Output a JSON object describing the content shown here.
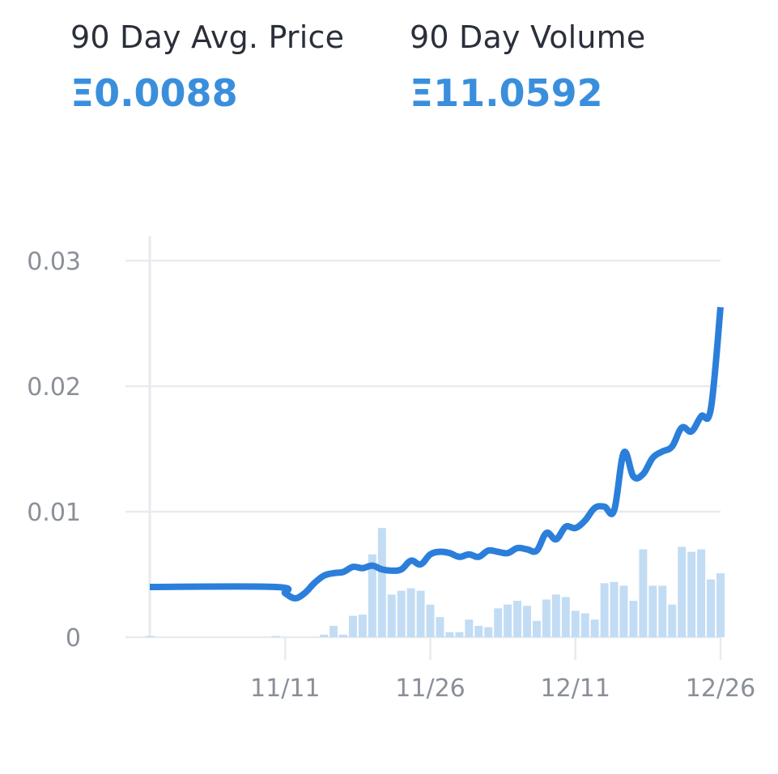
{
  "stats": {
    "avg_price": {
      "label": "90 Day Avg. Price",
      "value": "Ξ0.0088"
    },
    "volume": {
      "label": "90 Day Volume",
      "value": "Ξ11.0592"
    }
  },
  "colors": {
    "accent": "#3a8fdc",
    "line": "#2b7fdb",
    "bar": "#c2dcf4",
    "grid": "#e7eaee",
    "tick_text": "#8a8f99",
    "label_text": "#2a2f3a"
  },
  "chart_data": {
    "type": "line",
    "grid": true,
    "ylim": [
      0,
      0.03
    ],
    "yticks": [
      {
        "value": 0,
        "label": "0"
      },
      {
        "value": 0.01,
        "label": "0.01"
      },
      {
        "value": 0.02,
        "label": "0.02"
      },
      {
        "value": 0.03,
        "label": "0.03"
      }
    ],
    "x_start": "2024-10-28",
    "x_end": "2024-12-26",
    "xticks": [
      {
        "date": "2024-11-11",
        "label": "11/11"
      },
      {
        "date": "2024-11-26",
        "label": "11/26"
      },
      {
        "date": "2024-12-11",
        "label": "12/11"
      },
      {
        "date": "2024-12-26",
        "label": "12/26"
      }
    ],
    "price_series": {
      "points": [
        [
          "2024-10-28",
          0.004
        ],
        [
          "2024-11-10",
          0.004
        ],
        [
          "2024-11-11",
          0.0035
        ],
        [
          "2024-11-12",
          0.0031
        ],
        [
          "2024-11-13",
          0.0035
        ],
        [
          "2024-11-14",
          0.0043
        ],
        [
          "2024-11-15",
          0.0049
        ],
        [
          "2024-11-16",
          0.0051
        ],
        [
          "2024-11-17",
          0.0052
        ],
        [
          "2024-11-18",
          0.0056
        ],
        [
          "2024-11-19",
          0.0055
        ],
        [
          "2024-11-20",
          0.0057
        ],
        [
          "2024-11-21",
          0.0054
        ],
        [
          "2024-11-22",
          0.0053
        ],
        [
          "2024-11-23",
          0.0054
        ],
        [
          "2024-11-24",
          0.0061
        ],
        [
          "2024-11-25",
          0.0058
        ],
        [
          "2024-11-26",
          0.0066
        ],
        [
          "2024-11-27",
          0.0068
        ],
        [
          "2024-11-28",
          0.0067
        ],
        [
          "2024-11-29",
          0.0064
        ],
        [
          "2024-11-30",
          0.0066
        ],
        [
          "2024-12-01",
          0.0064
        ],
        [
          "2024-12-02",
          0.0069
        ],
        [
          "2024-12-03",
          0.0068
        ],
        [
          "2024-12-04",
          0.0067
        ],
        [
          "2024-12-05",
          0.0071
        ],
        [
          "2024-12-06",
          0.007
        ],
        [
          "2024-12-07",
          0.0069
        ],
        [
          "2024-12-08",
          0.0083
        ],
        [
          "2024-12-09",
          0.0078
        ],
        [
          "2024-12-10",
          0.0088
        ],
        [
          "2024-12-11",
          0.0087
        ],
        [
          "2024-12-12",
          0.0093
        ],
        [
          "2024-12-13",
          0.0103
        ],
        [
          "2024-12-14",
          0.0104
        ],
        [
          "2024-12-15",
          0.0101
        ],
        [
          "2024-12-16",
          0.0147
        ],
        [
          "2024-12-17",
          0.0128
        ],
        [
          "2024-12-18",
          0.013
        ],
        [
          "2024-12-19",
          0.0143
        ],
        [
          "2024-12-20",
          0.0148
        ],
        [
          "2024-12-21",
          0.0152
        ],
        [
          "2024-12-22",
          0.0167
        ],
        [
          "2024-12-23",
          0.0164
        ],
        [
          "2024-12-24",
          0.0176
        ],
        [
          "2024-12-25",
          0.0182
        ],
        [
          "2024-12-26",
          0.0263
        ]
      ]
    },
    "volume_series": {
      "bar_units": "price axis scale",
      "bars": [
        [
          "2024-10-28",
          0.0001
        ],
        [
          "2024-11-10",
          0.0001
        ],
        [
          "2024-11-15",
          0.0002
        ],
        [
          "2024-11-16",
          0.0009
        ],
        [
          "2024-11-17",
          0.0002
        ],
        [
          "2024-11-18",
          0.0017
        ],
        [
          "2024-11-19",
          0.0018
        ],
        [
          "2024-11-20",
          0.0066
        ],
        [
          "2024-11-21",
          0.0087
        ],
        [
          "2024-11-22",
          0.0034
        ],
        [
          "2024-11-23",
          0.0037
        ],
        [
          "2024-11-24",
          0.0039
        ],
        [
          "2024-11-25",
          0.0037
        ],
        [
          "2024-11-26",
          0.0026
        ],
        [
          "2024-11-27",
          0.0016
        ],
        [
          "2024-11-28",
          0.0004
        ],
        [
          "2024-11-29",
          0.0004
        ],
        [
          "2024-11-30",
          0.0014
        ],
        [
          "2024-12-01",
          0.0009
        ],
        [
          "2024-12-02",
          0.0008
        ],
        [
          "2024-12-03",
          0.0023
        ],
        [
          "2024-12-04",
          0.0026
        ],
        [
          "2024-12-05",
          0.0029
        ],
        [
          "2024-12-06",
          0.0025
        ],
        [
          "2024-12-07",
          0.0013
        ],
        [
          "2024-12-08",
          0.003
        ],
        [
          "2024-12-09",
          0.0034
        ],
        [
          "2024-12-10",
          0.0032
        ],
        [
          "2024-12-11",
          0.0021
        ],
        [
          "2024-12-12",
          0.0019
        ],
        [
          "2024-12-13",
          0.0014
        ],
        [
          "2024-12-14",
          0.0043
        ],
        [
          "2024-12-15",
          0.0044
        ],
        [
          "2024-12-16",
          0.0041
        ],
        [
          "2024-12-17",
          0.0029
        ],
        [
          "2024-12-18",
          0.007
        ],
        [
          "2024-12-19",
          0.0041
        ],
        [
          "2024-12-20",
          0.0041
        ],
        [
          "2024-12-21",
          0.0026
        ],
        [
          "2024-12-22",
          0.0072
        ],
        [
          "2024-12-23",
          0.0068
        ],
        [
          "2024-12-24",
          0.007
        ],
        [
          "2024-12-25",
          0.0046
        ],
        [
          "2024-12-26",
          0.0051
        ]
      ]
    }
  }
}
